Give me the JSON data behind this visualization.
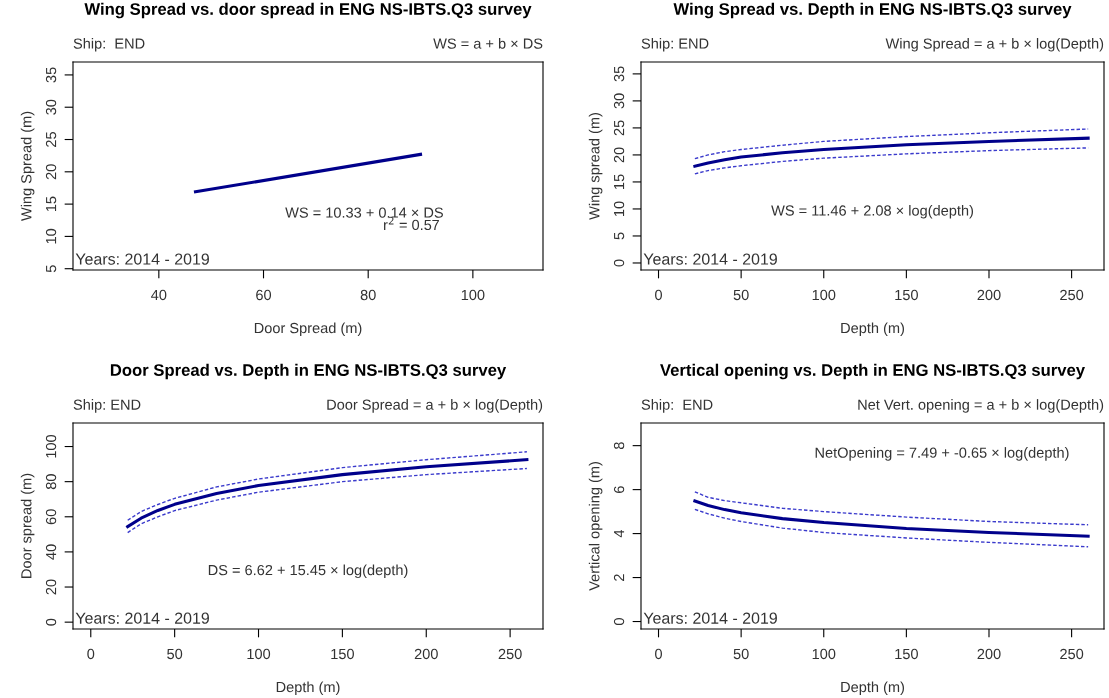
{
  "chart_data": [
    {
      "type": "line",
      "title": "Wing Spread vs. door spread in ENG NS-IBTS.Q3 survey",
      "xlabel": "Door Spread (m)",
      "ylabel": "Wing Spread (m)",
      "annotations": [
        "Ship:  END",
        "WS = a + b × DS",
        "Years: 2014 - 2019",
        "WS = 10.33 + 0.14 × DS",
        "r$^{2}$ = 0.57"
      ],
      "x": [
        47,
        90
      ],
      "series": [
        {
          "color": "#00008b",
          "values": [
            16.9,
            22.7
          ],
          "line_style": "solid"
        }
      ],
      "xlim": [
        23.6,
        113.4
      ],
      "xticks": [
        40,
        60,
        80,
        100
      ],
      "ylim": [
        4.8,
        37
      ],
      "yticks": [
        5,
        10,
        15,
        20,
        25,
        30,
        35
      ],
      "grid": false,
      "legend": false
    },
    {
      "type": "line",
      "title": "Wing Spread vs. Depth in ENG NS-IBTS.Q3 survey",
      "xlabel": "Depth (m)",
      "ylabel": "Wing spread (m)",
      "annotations": [
        "Ship: END",
        "Wing Spread = a + b × log(Depth)",
        "Years: 2014 - 2019",
        "WS = 11.46 + 2.08 × log(depth)"
      ],
      "x": [
        22,
        30,
        40,
        50,
        75,
        100,
        150,
        200,
        260
      ],
      "series": [
        {
          "color": "#00008b",
          "values": [
            17.9,
            18.5,
            19.1,
            19.6,
            20.4,
            21.0,
            21.9,
            22.5,
            23.1
          ],
          "line_style": "solid"
        },
        {
          "color": "#3a3acc",
          "values": [
            19.3,
            20.0,
            20.6,
            21.0,
            21.8,
            22.5,
            23.4,
            24.1,
            24.8
          ],
          "line_style": "dashed"
        },
        {
          "color": "#3a3acc",
          "values": [
            16.5,
            17.1,
            17.6,
            18.0,
            18.8,
            19.4,
            20.2,
            20.8,
            21.3
          ],
          "line_style": "dashed"
        }
      ],
      "xlim": [
        -10.6,
        269.6
      ],
      "xticks": [
        0,
        50,
        100,
        150,
        200,
        250
      ],
      "ylim": [
        -1.3,
        37.2
      ],
      "yticks": [
        0,
        5,
        10,
        15,
        20,
        25,
        30,
        35
      ],
      "grid": false,
      "legend": false
    },
    {
      "type": "line",
      "title": "Door Spread vs. Depth in ENG NS-IBTS.Q3 survey",
      "xlabel": "Depth (m)",
      "ylabel": "Door spread (m)",
      "annotations": [
        "Ship: END",
        "Door Spread = a + b × log(Depth)",
        "Years: 2014 - 2019",
        "DS = 6.62 + 15.45 × log(depth)"
      ],
      "x": [
        22,
        30,
        40,
        50,
        75,
        100,
        150,
        200,
        260
      ],
      "series": [
        {
          "color": "#00008b",
          "values": [
            54.4,
            59.2,
            63.6,
            67.1,
            73.3,
            77.8,
            84.0,
            88.5,
            92.5
          ],
          "line_style": "solid"
        },
        {
          "color": "#3a3acc",
          "values": [
            58,
            63,
            67,
            70.5,
            77,
            81.5,
            88,
            92.5,
            97
          ],
          "line_style": "dashed"
        },
        {
          "color": "#3a3acc",
          "values": [
            51,
            56,
            60,
            63.5,
            69.5,
            74,
            80,
            84,
            87.5
          ],
          "line_style": "dashed"
        }
      ],
      "xlim": [
        -10.6,
        269.6
      ],
      "xticks": [
        0,
        50,
        100,
        150,
        200,
        250
      ],
      "ylim": [
        -3.9,
        113.4
      ],
      "yticks": [
        0,
        20,
        40,
        60,
        80,
        100
      ],
      "grid": false,
      "legend": false
    },
    {
      "type": "line",
      "title": "Vertical opening vs. Depth in ENG NS-IBTS.Q3 survey",
      "xlabel": "Depth (m)",
      "ylabel": "Vertical opening (m)",
      "annotations": [
        "Ship:  END",
        "Net Vert. opening = a + b × log(Depth)",
        "Years: 2014 - 2019",
        "NetOpening = 7.49 + -0.65 × log(depth)"
      ],
      "x": [
        22,
        30,
        40,
        50,
        75,
        100,
        150,
        200,
        260
      ],
      "series": [
        {
          "color": "#00008b",
          "values": [
            5.48,
            5.28,
            5.09,
            4.95,
            4.68,
            4.5,
            4.23,
            4.05,
            3.88
          ],
          "line_style": "solid"
        },
        {
          "color": "#3a3acc",
          "values": [
            5.9,
            5.65,
            5.5,
            5.4,
            5.15,
            5.0,
            4.75,
            4.55,
            4.4
          ],
          "line_style": "dashed"
        },
        {
          "color": "#3a3acc",
          "values": [
            5.1,
            4.9,
            4.7,
            4.55,
            4.25,
            4.05,
            3.8,
            3.6,
            3.4
          ],
          "line_style": "dashed"
        }
      ],
      "xlim": [
        -10.6,
        269.6
      ],
      "xticks": [
        0,
        50,
        100,
        150,
        200,
        250
      ],
      "ylim": [
        -0.34,
        9.03
      ],
      "yticks": [
        0,
        2,
        4,
        6,
        8
      ],
      "grid": false,
      "legend": false
    }
  ]
}
